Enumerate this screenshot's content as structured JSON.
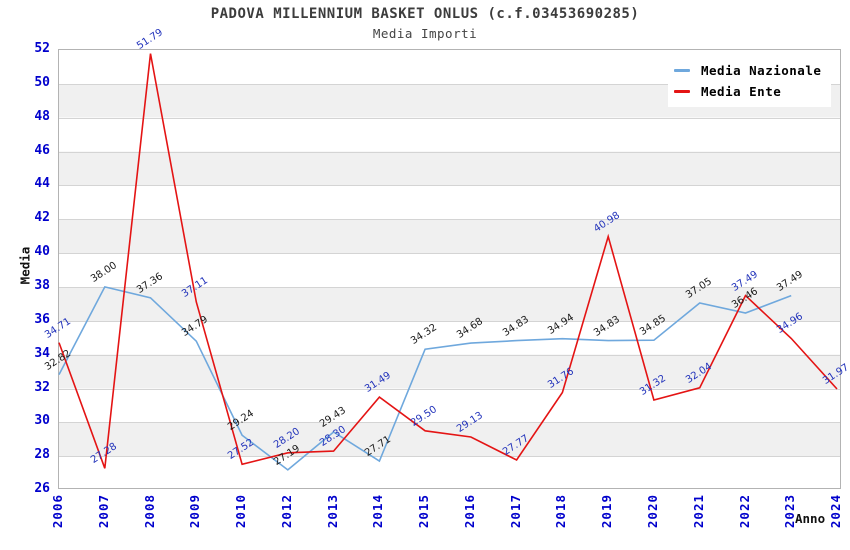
{
  "header": {
    "title": "PADOVA MILLENNIUM BASKET ONLUS (c.f.03453690285)",
    "subtitle": "Media Importi"
  },
  "axes": {
    "y_label": "Media",
    "x_label": "Anno",
    "y_ticks": [
      52,
      50,
      48,
      46,
      44,
      42,
      40,
      38,
      36,
      34,
      32,
      30,
      28,
      26
    ]
  },
  "legend": {
    "items": [
      {
        "label": "Media Nazionale",
        "color": "#6fa8dd"
      },
      {
        "label": "Media Ente",
        "color": "#e41414"
      }
    ]
  },
  "colors": {
    "tick_text": "#0000cc",
    "band_gray": "#f0f0f0",
    "gridline": "#d4d4d4",
    "plot_border": "#b3b3b3"
  },
  "chart_data": {
    "type": "line",
    "title": "PADOVA MILLENNIUM BASKET ONLUS (c.f.03453690285)",
    "subtitle": "Media Importi",
    "xlabel": "Anno",
    "ylabel": "Media",
    "ylim": [
      26,
      52
    ],
    "grid": true,
    "legend_position": "top-right",
    "categories": [
      "2006",
      "2007",
      "2008",
      "2009",
      "2010",
      "2012",
      "2013",
      "2014",
      "2015",
      "2016",
      "2017",
      "2018",
      "2019",
      "2020",
      "2021",
      "2022",
      "2023",
      "2024"
    ],
    "series": [
      {
        "name": "Media Nazionale",
        "color": "#6fa8dd",
        "label_color": "#1a1a1a",
        "values": [
          32.82,
          38.0,
          37.36,
          34.79,
          29.24,
          27.19,
          29.43,
          27.71,
          34.32,
          34.68,
          34.83,
          34.94,
          34.83,
          34.85,
          37.05,
          36.46,
          37.49,
          null
        ]
      },
      {
        "name": "Media Ente",
        "color": "#e41414",
        "label_color": "#2233bb",
        "values": [
          34.71,
          27.28,
          51.79,
          37.11,
          27.52,
          28.2,
          28.3,
          31.49,
          29.5,
          29.13,
          27.77,
          31.76,
          40.98,
          31.32,
          32.04,
          37.49,
          34.96,
          31.97
        ]
      }
    ]
  }
}
